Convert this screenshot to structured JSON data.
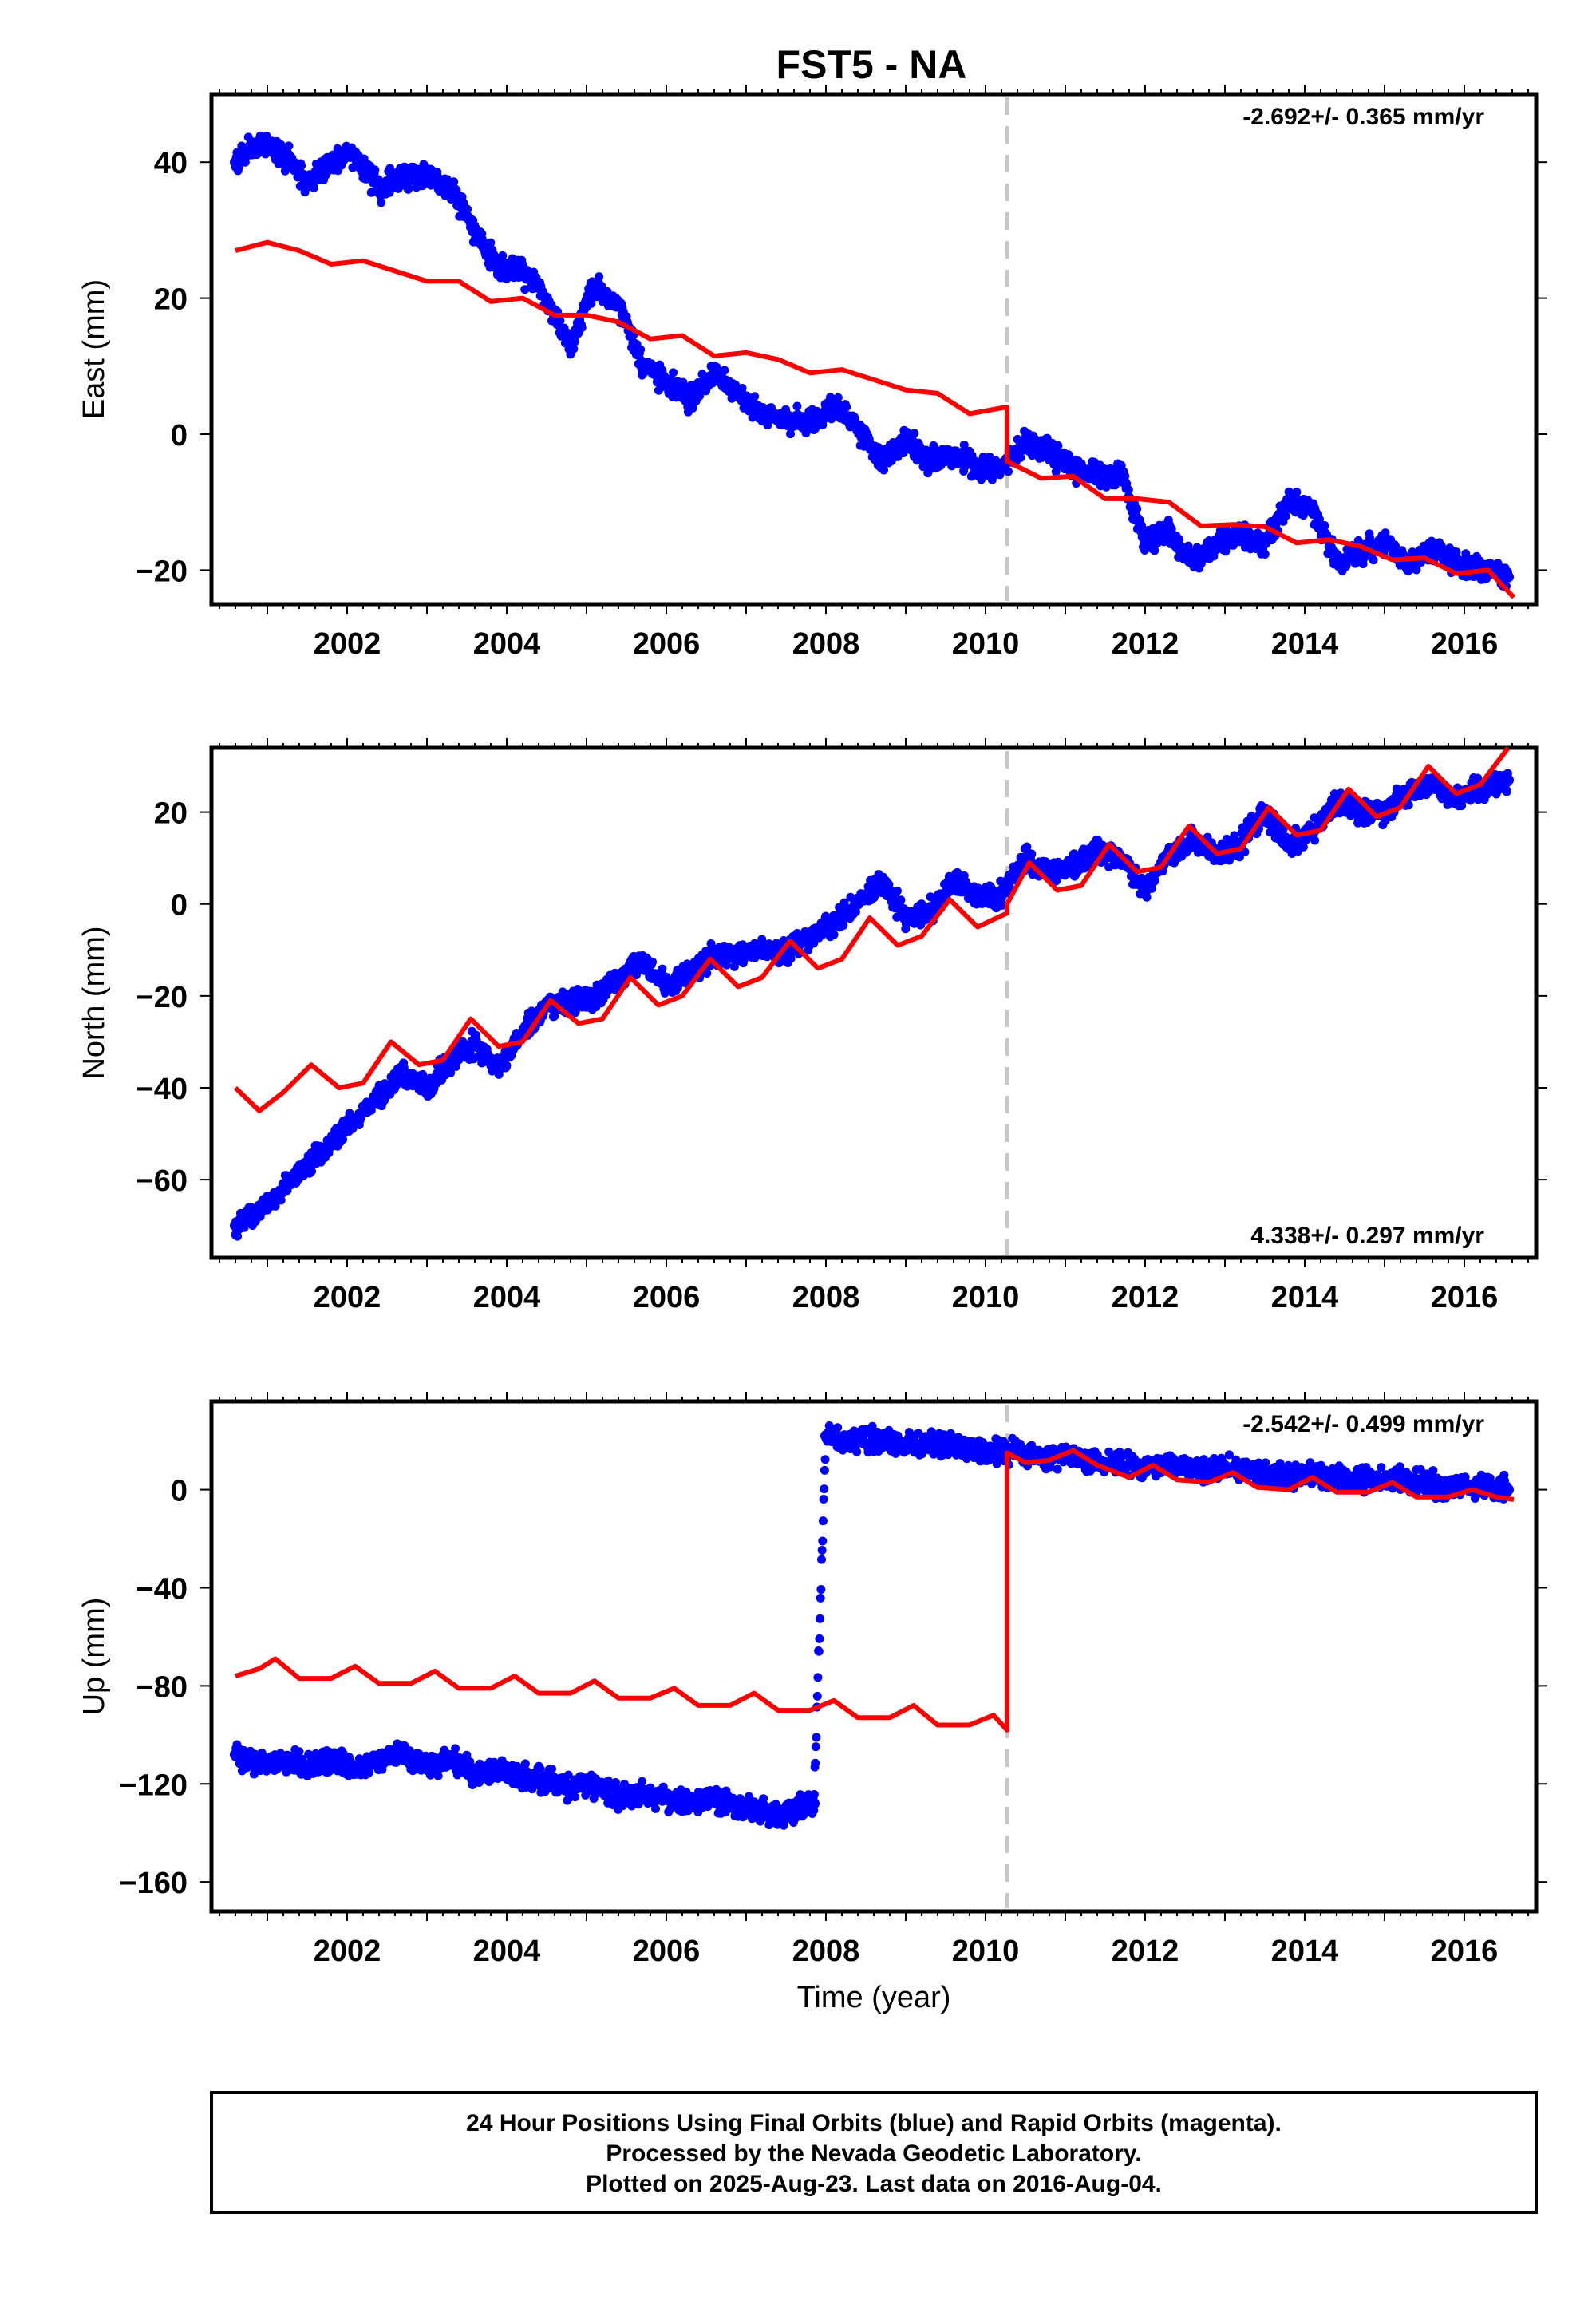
{
  "figure": {
    "title": "FST5 - NA",
    "footer": {
      "line1": "24 Hour Positions Using Final Orbits (blue) and Rapid Orbits (magenta).",
      "line2": "Processed by the Nevada Geodetic Laboratory.",
      "line3": "Plotted on 2025-Aug-23. Last data on 2016-Aug-04."
    },
    "colors": {
      "data": "#0000ff",
      "model": "#ff0000",
      "event_line": "#c8c8c8"
    }
  },
  "chart_data": [
    {
      "type": "scatter",
      "panel": "east",
      "title": "FST5 - NA",
      "xlabel": "",
      "ylabel": "East (mm)",
      "xlim": [
        2000.3,
        2016.9
      ],
      "ylim": [
        -25,
        50
      ],
      "xticks": [
        2002,
        2004,
        2006,
        2008,
        2010,
        2012,
        2014,
        2016
      ],
      "yticks": [
        -20,
        0,
        20,
        40
      ],
      "tick_labels_y": [
        "−20",
        "0",
        "20",
        "40"
      ],
      "rate_label": "-2.692+/- 0.365 mm/yr",
      "rate_position": "top-right",
      "event_line_x": 2010.27,
      "observations": {
        "x": [
          2000.6,
          2000.9,
          2001.2,
          2001.5,
          2001.8,
          2002.1,
          2002.4,
          2002.7,
          2003.0,
          2003.3,
          2003.6,
          2003.9,
          2004.2,
          2004.5,
          2004.8,
          2005.1,
          2005.4,
          2005.7,
          2006.0,
          2006.3,
          2006.6,
          2006.9,
          2007.2,
          2007.5,
          2007.8,
          2008.1,
          2008.4,
          2008.7,
          2009.0,
          2009.3,
          2009.6,
          2009.9,
          2010.2,
          2010.5,
          2010.8,
          2011.1,
          2011.4,
          2011.7,
          2012.0,
          2012.3,
          2012.6,
          2012.9,
          2013.2,
          2013.5,
          2013.8,
          2014.1,
          2014.4,
          2014.7,
          2015.0,
          2015.3,
          2015.6,
          2015.9,
          2016.2,
          2016.55
        ],
        "y": [
          40,
          43,
          41,
          37,
          40,
          41,
          36,
          38,
          38,
          36,
          30,
          24,
          24,
          20,
          13,
          22,
          19,
          10,
          8,
          5,
          9,
          6,
          3,
          2,
          2,
          4,
          1,
          -4,
          -1,
          -4,
          -3,
          -5,
          -5,
          -1,
          -3,
          -5,
          -6,
          -6,
          -16,
          -14,
          -19,
          -16,
          -15,
          -16,
          -10,
          -11,
          -19,
          -17,
          -16,
          -19,
          -17,
          -19,
          -20,
          -21
        ]
      },
      "model": {
        "x": [
          2000.6,
          2001.0,
          2001.4,
          2001.8,
          2002.2,
          2002.6,
          2003.0,
          2003.4,
          2003.8,
          2004.2,
          2004.6,
          2005.0,
          2005.4,
          2005.8,
          2006.2,
          2006.6,
          2007.0,
          2007.4,
          2007.8,
          2008.2,
          2008.6,
          2009.0,
          2009.4,
          2009.8,
          2010.27,
          2010.27,
          2010.7,
          2011.1,
          2011.5,
          2011.9,
          2012.3,
          2012.7,
          2013.1,
          2013.5,
          2013.9,
          2014.3,
          2014.7,
          2015.1,
          2015.5,
          2015.9,
          2016.3,
          2016.62
        ],
        "y": [
          27,
          28.2,
          27,
          25,
          25.5,
          24,
          22.5,
          22.5,
          19.5,
          20,
          17.5,
          17.5,
          16.5,
          14,
          14.5,
          11.5,
          12,
          11,
          9,
          9.5,
          8,
          6.5,
          6,
          3,
          4,
          -4,
          -6.5,
          -6.2,
          -9.5,
          -9.5,
          -10,
          -13.5,
          -13.3,
          -13.6,
          -16,
          -15.5,
          -16.5,
          -18.5,
          -18.2,
          -20.5,
          -20,
          -24
        ]
      }
    },
    {
      "type": "scatter",
      "panel": "north",
      "xlabel": "",
      "ylabel": "North (mm)",
      "xlim": [
        2000.3,
        2016.9
      ],
      "ylim": [
        -77,
        34
      ],
      "xticks": [
        2002,
        2004,
        2006,
        2008,
        2010,
        2012,
        2014,
        2016
      ],
      "yticks": [
        -60,
        -40,
        -20,
        0,
        20
      ],
      "tick_labels_y": [
        "−60",
        "−40",
        "−20",
        "0",
        "20"
      ],
      "rate_label": "4.338+/- 0.297 mm/yr",
      "rate_position": "bottom-right",
      "event_line_x": 2010.27,
      "observations": {
        "x": [
          2000.6,
          2000.9,
          2001.2,
          2001.5,
          2001.8,
          2002.1,
          2002.4,
          2002.7,
          2003.0,
          2003.3,
          2003.6,
          2003.9,
          2004.2,
          2004.5,
          2004.8,
          2005.1,
          2005.4,
          2005.7,
          2006.0,
          2006.3,
          2006.6,
          2006.9,
          2007.2,
          2007.5,
          2007.8,
          2008.1,
          2008.4,
          2008.7,
          2009.0,
          2009.3,
          2009.6,
          2009.9,
          2010.2,
          2010.5,
          2010.8,
          2011.1,
          2011.4,
          2011.7,
          2012.0,
          2012.3,
          2012.6,
          2012.9,
          2013.2,
          2013.5,
          2013.8,
          2014.1,
          2014.4,
          2014.7,
          2015.0,
          2015.3,
          2015.6,
          2015.9,
          2016.2,
          2016.55
        ],
        "y": [
          -70,
          -67,
          -62,
          -57,
          -52,
          -47,
          -42,
          -37,
          -40,
          -34,
          -30,
          -36,
          -28,
          -22,
          -22,
          -20,
          -16,
          -12,
          -18,
          -15,
          -11,
          -11,
          -10,
          -10,
          -7,
          -4,
          0,
          5,
          -3,
          -2,
          5,
          2,
          2,
          10,
          7,
          8,
          12,
          10,
          3,
          11,
          14,
          11,
          13,
          20,
          13,
          16,
          22,
          20,
          20,
          24,
          26,
          23,
          25,
          27
        ]
      },
      "model": {
        "x": [
          2000.6,
          2000.9,
          2001.2,
          2001.55,
          2001.9,
          2002.2,
          2002.55,
          2002.9,
          2003.2,
          2003.55,
          2003.9,
          2004.2,
          2004.55,
          2004.9,
          2005.2,
          2005.55,
          2005.9,
          2006.2,
          2006.55,
          2006.9,
          2007.2,
          2007.55,
          2007.9,
          2008.2,
          2008.55,
          2008.9,
          2009.2,
          2009.55,
          2009.9,
          2010.27,
          2010.27,
          2010.55,
          2010.9,
          2011.2,
          2011.55,
          2011.9,
          2012.2,
          2012.55,
          2012.9,
          2013.2,
          2013.55,
          2013.9,
          2014.2,
          2014.55,
          2014.9,
          2015.2,
          2015.55,
          2015.9,
          2016.2,
          2016.55
        ],
        "y": [
          -40,
          -45,
          -41,
          -35,
          -40,
          -39,
          -30,
          -35,
          -34,
          -25,
          -31,
          -30,
          -21,
          -26,
          -25,
          -16,
          -22,
          -20,
          -12,
          -18,
          -16,
          -8,
          -14,
          -12,
          -3,
          -9,
          -7,
          1,
          -5,
          -2,
          0,
          9,
          3,
          4,
          13,
          7,
          8,
          17,
          11,
          12,
          21,
          15,
          16,
          25,
          19,
          21,
          30,
          24,
          26,
          34
        ]
      }
    },
    {
      "type": "scatter",
      "panel": "up",
      "xlabel": "Time (year)",
      "ylabel": "Up (mm)",
      "xlim": [
        2000.3,
        2016.9
      ],
      "ylim": [
        -172,
        36
      ],
      "xticks": [
        2002,
        2004,
        2006,
        2008,
        2010,
        2012,
        2014,
        2016
      ],
      "yticks": [
        -160,
        -120,
        -80,
        -40,
        0
      ],
      "tick_labels_y": [
        "−160",
        "−120",
        "−80",
        "−40",
        "0"
      ],
      "rate_label": "-2.542+/- 0.499 mm/yr",
      "rate_position": "top-right",
      "event_line_x": 2010.27,
      "observations": {
        "x": [
          2000.6,
          2000.9,
          2001.2,
          2001.5,
          2001.8,
          2002.1,
          2002.4,
          2002.7,
          2003.0,
          2003.3,
          2003.6,
          2003.9,
          2004.2,
          2004.5,
          2004.8,
          2005.1,
          2005.4,
          2005.7,
          2006.0,
          2006.3,
          2006.6,
          2006.9,
          2007.2,
          2007.5,
          2007.85,
          2008.0,
          2008.3,
          2008.6,
          2008.9,
          2009.2,
          2009.5,
          2009.8,
          2010.1,
          2010.4,
          2010.7,
          2011.0,
          2011.3,
          2011.6,
          2011.9,
          2012.2,
          2012.5,
          2012.8,
          2013.1,
          2013.4,
          2013.7,
          2014.0,
          2014.3,
          2014.6,
          2014.9,
          2015.2,
          2015.5,
          2015.8,
          2016.1,
          2016.55
        ],
        "y": [
          -108,
          -112,
          -110,
          -113,
          -110,
          -115,
          -110,
          -108,
          -112,
          -110,
          -116,
          -114,
          -118,
          -118,
          -122,
          -120,
          -125,
          -125,
          -126,
          -128,
          -127,
          -130,
          -131,
          -132,
          -128,
          22,
          20,
          21,
          19,
          18,
          19,
          17,
          16,
          16,
          13,
          14,
          12,
          11,
          10,
          10,
          9,
          8,
          9,
          7,
          6,
          6,
          5,
          4,
          4,
          4,
          2,
          1,
          1,
          0
        ]
      },
      "model": {
        "x": [
          2000.6,
          2000.9,
          2001.1,
          2001.4,
          2001.8,
          2002.1,
          2002.4,
          2002.8,
          2003.1,
          2003.4,
          2003.8,
          2004.1,
          2004.4,
          2004.8,
          2005.1,
          2005.4,
          2005.8,
          2006.1,
          2006.4,
          2006.8,
          2007.1,
          2007.4,
          2007.8,
          2008.1,
          2008.4,
          2008.8,
          2009.1,
          2009.4,
          2009.8,
          2010.1,
          2010.27,
          2010.27,
          2010.5,
          2010.8,
          2011.1,
          2011.4,
          2011.8,
          2012.1,
          2012.4,
          2012.8,
          2013.1,
          2013.4,
          2013.8,
          2014.1,
          2014.4,
          2014.8,
          2015.1,
          2015.4,
          2015.8,
          2016.1,
          2016.4,
          2016.62
        ],
        "y": [
          -76,
          -73,
          -69,
          -77,
          -77,
          -72,
          -79,
          -79,
          -74,
          -81,
          -81,
          -76,
          -83,
          -83,
          -78,
          -85,
          -85,
          -81,
          -88,
          -88,
          -83,
          -90,
          -90,
          -86,
          -93,
          -93,
          -88,
          -96,
          -96,
          -92,
          -98,
          15,
          11,
          12,
          16,
          10,
          5,
          10,
          4,
          3,
          7,
          1,
          0,
          5,
          -1,
          -1,
          3,
          -3,
          -3,
          0,
          -3,
          -4
        ]
      }
    }
  ]
}
